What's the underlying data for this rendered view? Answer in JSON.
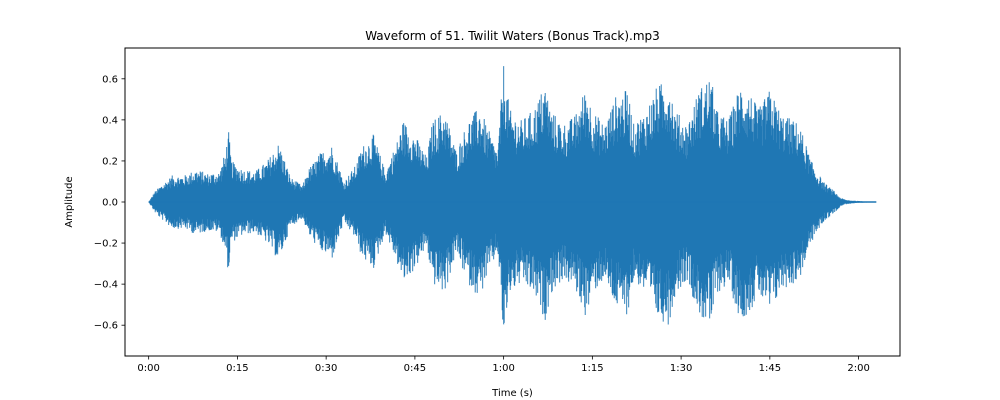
{
  "chart_data": {
    "type": "line",
    "title": "Waveform of 51. Twilit Waters (Bonus Track).mp3",
    "xlabel": "Time (s)",
    "ylabel": "Amplitude",
    "xlim": [
      -4,
      127
    ],
    "ylim": [
      -0.75,
      0.75
    ],
    "x_ticks": [
      {
        "value": 0,
        "label": "0:00"
      },
      {
        "value": 15,
        "label": "0:15"
      },
      {
        "value": 30,
        "label": "0:30"
      },
      {
        "value": 45,
        "label": "0:45"
      },
      {
        "value": 60,
        "label": "1:00"
      },
      {
        "value": 75,
        "label": "1:15"
      },
      {
        "value": 90,
        "label": "1:30"
      },
      {
        "value": 105,
        "label": "1:45"
      },
      {
        "value": 120,
        "label": "2:00"
      }
    ],
    "y_ticks": [
      {
        "value": -0.6,
        "label": "−0.6"
      },
      {
        "value": -0.4,
        "label": "−0.4"
      },
      {
        "value": -0.2,
        "label": "−0.2"
      },
      {
        "value": 0.0,
        "label": "0.0"
      },
      {
        "value": 0.2,
        "label": "0.2"
      },
      {
        "value": 0.4,
        "label": "0.4"
      },
      {
        "value": 0.6,
        "label": "0.6"
      }
    ],
    "grid": false,
    "series": [
      {
        "color": "#1f77b4",
        "envelope_time_s": [
          0,
          1,
          2,
          4,
          6,
          8,
          10,
          12,
          13,
          13.5,
          14,
          16,
          18,
          20,
          22,
          24,
          26,
          27,
          29,
          31,
          33,
          35,
          36,
          38,
          40,
          42,
          43,
          45,
          47,
          48,
          50,
          52,
          54,
          56,
          57,
          59,
          60,
          61,
          63,
          65,
          67,
          68,
          70,
          72,
          74,
          75,
          77,
          79,
          81,
          82,
          84,
          86,
          88,
          89,
          91,
          93,
          95,
          96,
          98,
          100,
          102,
          103,
          105,
          107,
          109,
          110,
          112,
          114,
          116,
          117,
          118,
          120,
          123
        ],
        "envelope_max_amplitude": [
          0.0,
          0.05,
          0.08,
          0.13,
          0.13,
          0.16,
          0.14,
          0.15,
          0.25,
          0.35,
          0.2,
          0.16,
          0.15,
          0.2,
          0.29,
          0.12,
          0.08,
          0.16,
          0.24,
          0.28,
          0.1,
          0.18,
          0.27,
          0.33,
          0.15,
          0.3,
          0.4,
          0.33,
          0.22,
          0.4,
          0.45,
          0.25,
          0.4,
          0.47,
          0.38,
          0.25,
          0.68,
          0.45,
          0.4,
          0.45,
          0.58,
          0.45,
          0.38,
          0.42,
          0.57,
          0.45,
          0.38,
          0.52,
          0.55,
          0.38,
          0.45,
          0.57,
          0.6,
          0.45,
          0.38,
          0.55,
          0.62,
          0.45,
          0.4,
          0.58,
          0.52,
          0.45,
          0.55,
          0.43,
          0.4,
          0.38,
          0.2,
          0.1,
          0.05,
          0.02,
          0.01,
          0.005,
          0.0
        ]
      }
    ]
  }
}
